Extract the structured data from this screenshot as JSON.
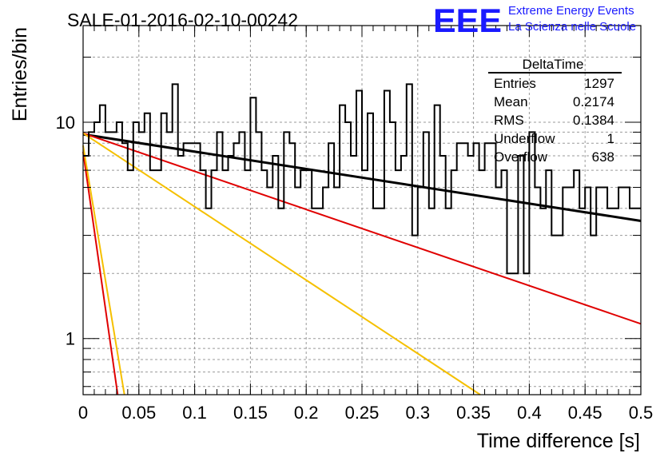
{
  "title": "SALE-01-2016-02-10-00242",
  "logo": {
    "mark": "EEE",
    "line1": "Extreme Energy Events",
    "line2": "La Scienza nelle Scuole",
    "color": "#1a1aff"
  },
  "stats": {
    "name": "DeltaTime",
    "rows": [
      {
        "label": "Entries",
        "value": "1297"
      },
      {
        "label": "Mean",
        "value": "0.2174"
      },
      {
        "label": "RMS",
        "value": "0.1384"
      },
      {
        "label": "Underflow",
        "value": "1"
      },
      {
        "label": "Overflow",
        "value": "638"
      }
    ]
  },
  "chart_data": {
    "type": "line",
    "xlabel": "Time difference [s]",
    "ylabel": "Entries/bin",
    "xlim": [
      0,
      0.5
    ],
    "ylim": [
      0.55,
      28
    ],
    "yscale": "log",
    "grid": true,
    "x_ticks": [
      "0",
      "0.05",
      "0.1",
      "0.15",
      "0.2",
      "0.25",
      "0.3",
      "0.35",
      "0.4",
      "0.45",
      "0.5"
    ],
    "y_ticks": [
      "1",
      "10"
    ],
    "histogram": {
      "bin_width": 0.005,
      "bin_start": 0,
      "color": "#000000",
      "values": [
        7,
        9,
        10,
        12,
        9,
        9,
        10,
        8,
        6,
        10,
        9,
        11,
        6,
        6,
        11,
        9,
        15,
        7,
        8,
        8,
        8,
        6,
        4,
        6,
        9,
        6,
        7,
        8,
        9,
        6,
        13,
        9,
        6,
        5,
        7,
        4,
        9,
        8,
        5,
        6,
        6,
        4,
        4,
        5,
        8,
        5,
        12,
        10,
        7,
        14,
        6,
        11,
        4,
        4,
        14,
        10,
        6,
        7,
        15,
        3,
        5,
        9,
        4,
        12,
        7,
        4,
        6,
        8,
        8,
        7,
        8,
        6,
        8,
        8,
        5,
        6,
        2,
        2,
        7,
        2,
        9,
        5,
        4,
        6,
        3,
        3,
        5,
        5,
        6,
        4,
        5,
        3,
        5,
        5,
        4,
        4,
        5,
        5,
        4,
        4
      ]
    },
    "series": [
      {
        "color": "#000000",
        "x": [
          0,
          0.5
        ],
        "y": [
          8.8,
          3.5
        ]
      },
      {
        "color": "#e00000",
        "x": [
          0,
          0.5
        ],
        "y": [
          8.9,
          1.17
        ]
      },
      {
        "color": "#f5c000",
        "x": [
          0,
          0.356
        ],
        "y": [
          8.9,
          0.55
        ]
      },
      {
        "color": "#e00000",
        "x": [
          0,
          0.031
        ],
        "y": [
          7.3,
          0.55
        ]
      },
      {
        "color": "#f5c000",
        "x": [
          0,
          0.037
        ],
        "y": [
          7.8,
          0.55
        ]
      }
    ]
  }
}
